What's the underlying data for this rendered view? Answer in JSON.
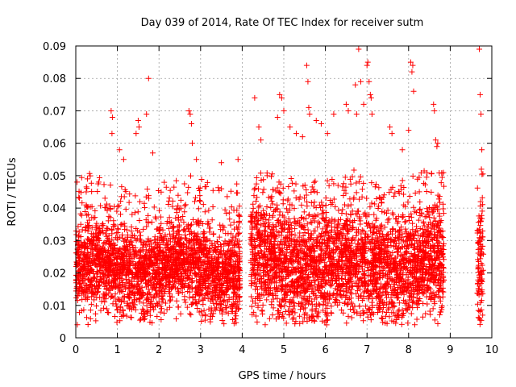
{
  "chart_data": {
    "type": "scatter",
    "title": "Day 039 of 2014, Rate Of TEC Index for receiver sutm",
    "xlabel": "GPS time / hours",
    "ylabel": "ROTI / TECUs",
    "xlim": [
      0,
      10
    ],
    "ylim": [
      0,
      0.09
    ],
    "grid": true,
    "x_ticks": [
      "0",
      "1",
      "2",
      "3",
      "4",
      "5",
      "6",
      "7",
      "8",
      "9",
      "10"
    ],
    "y_ticks": [
      "0",
      "0.01",
      "0.02",
      "0.03",
      "0.04",
      "0.05",
      "0.06",
      "0.07",
      "0.08",
      "0.09"
    ],
    "marker": "+",
    "series": [
      {
        "name": "ROTI",
        "color": "#ff0000",
        "segments": [
          {
            "x_start": 0.0,
            "x_end": 3.95,
            "y_center": 0.021,
            "y_spread": 0.009
          },
          {
            "x_start": 4.2,
            "x_end": 8.85,
            "y_center": 0.022,
            "y_spread": 0.011
          },
          {
            "x_start": 9.65,
            "x_end": 9.8,
            "y_center": 0.025,
            "y_spread": 0.012
          }
        ],
        "points": [
          {
            "x": 0.03,
            "y": 0.048
          },
          {
            "x": 0.05,
            "y": 0.013
          },
          {
            "x": 0.12,
            "y": 0.035
          },
          {
            "x": 0.25,
            "y": 0.041
          },
          {
            "x": 0.28,
            "y": 0.049
          },
          {
            "x": 0.55,
            "y": 0.048
          },
          {
            "x": 0.85,
            "y": 0.07
          },
          {
            "x": 0.88,
            "y": 0.068
          },
          {
            "x": 0.87,
            "y": 0.063
          },
          {
            "x": 1.05,
            "y": 0.058
          },
          {
            "x": 1.15,
            "y": 0.055
          },
          {
            "x": 1.45,
            "y": 0.063
          },
          {
            "x": 1.5,
            "y": 0.067
          },
          {
            "x": 1.52,
            "y": 0.065
          },
          {
            "x": 1.7,
            "y": 0.069
          },
          {
            "x": 1.75,
            "y": 0.08
          },
          {
            "x": 1.85,
            "y": 0.057
          },
          {
            "x": 2.72,
            "y": 0.07
          },
          {
            "x": 2.75,
            "y": 0.069
          },
          {
            "x": 2.78,
            "y": 0.066
          },
          {
            "x": 2.8,
            "y": 0.06
          },
          {
            "x": 2.9,
            "y": 0.055
          },
          {
            "x": 3.5,
            "y": 0.054
          },
          {
            "x": 3.9,
            "y": 0.055
          },
          {
            "x": 4.3,
            "y": 0.074
          },
          {
            "x": 4.4,
            "y": 0.065
          },
          {
            "x": 4.45,
            "y": 0.061
          },
          {
            "x": 4.6,
            "y": 0.05
          },
          {
            "x": 4.85,
            "y": 0.068
          },
          {
            "x": 4.9,
            "y": 0.075
          },
          {
            "x": 4.95,
            "y": 0.074
          },
          {
            "x": 5.0,
            "y": 0.07
          },
          {
            "x": 5.15,
            "y": 0.065
          },
          {
            "x": 5.3,
            "y": 0.063
          },
          {
            "x": 5.45,
            "y": 0.062
          },
          {
            "x": 5.55,
            "y": 0.084
          },
          {
            "x": 5.58,
            "y": 0.079
          },
          {
            "x": 5.6,
            "y": 0.071
          },
          {
            "x": 5.62,
            "y": 0.069
          },
          {
            "x": 5.78,
            "y": 0.067
          },
          {
            "x": 5.9,
            "y": 0.066
          },
          {
            "x": 6.05,
            "y": 0.063
          },
          {
            "x": 6.2,
            "y": 0.069
          },
          {
            "x": 6.5,
            "y": 0.072
          },
          {
            "x": 6.55,
            "y": 0.07
          },
          {
            "x": 6.72,
            "y": 0.078
          },
          {
            "x": 6.75,
            "y": 0.069
          },
          {
            "x": 6.8,
            "y": 0.089
          },
          {
            "x": 6.85,
            "y": 0.079
          },
          {
            "x": 6.92,
            "y": 0.072
          },
          {
            "x": 7.0,
            "y": 0.084
          },
          {
            "x": 7.02,
            "y": 0.085
          },
          {
            "x": 7.05,
            "y": 0.079
          },
          {
            "x": 7.08,
            "y": 0.075
          },
          {
            "x": 7.1,
            "y": 0.074
          },
          {
            "x": 7.12,
            "y": 0.069
          },
          {
            "x": 7.55,
            "y": 0.065
          },
          {
            "x": 7.6,
            "y": 0.063
          },
          {
            "x": 7.85,
            "y": 0.058
          },
          {
            "x": 8.0,
            "y": 0.064
          },
          {
            "x": 8.05,
            "y": 0.085
          },
          {
            "x": 8.1,
            "y": 0.084
          },
          {
            "x": 8.08,
            "y": 0.082
          },
          {
            "x": 8.12,
            "y": 0.076
          },
          {
            "x": 8.6,
            "y": 0.072
          },
          {
            "x": 8.62,
            "y": 0.07
          },
          {
            "x": 8.65,
            "y": 0.061
          },
          {
            "x": 8.68,
            "y": 0.059
          },
          {
            "x": 8.7,
            "y": 0.06
          },
          {
            "x": 9.7,
            "y": 0.089
          },
          {
            "x": 9.72,
            "y": 0.075
          },
          {
            "x": 9.74,
            "y": 0.069
          },
          {
            "x": 9.76,
            "y": 0.058
          },
          {
            "x": 9.75,
            "y": 0.052
          },
          {
            "x": 9.73,
            "y": 0.042
          },
          {
            "x": 9.7,
            "y": 0.006
          },
          {
            "x": 9.78,
            "y": 0.007
          }
        ]
      }
    ]
  }
}
